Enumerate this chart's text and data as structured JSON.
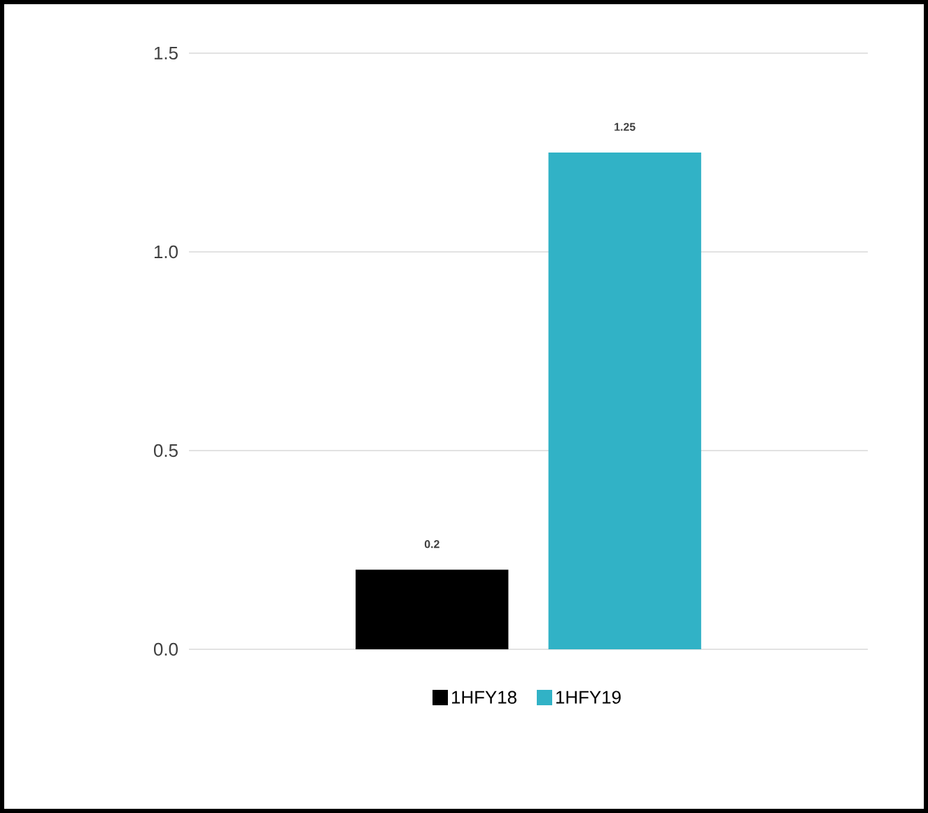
{
  "chart_data": {
    "type": "bar",
    "categories": [
      null
    ],
    "series": [
      {
        "name": "1HFY18",
        "color": "#000000",
        "values": [
          0.2
        ]
      },
      {
        "name": "1HFY19",
        "color": "#31b2c6",
        "values": [
          1.25
        ]
      }
    ],
    "ylim": [
      0,
      1.5
    ],
    "yticks": [
      {
        "value": 0,
        "label": "0.0"
      },
      {
        "value": 0.5,
        "label": "0.5"
      },
      {
        "value": 1,
        "label": "1.0"
      },
      {
        "value": 1.5,
        "label": "1.5"
      }
    ],
    "grid": "y",
    "legend": "bottom",
    "data_labels": true
  }
}
